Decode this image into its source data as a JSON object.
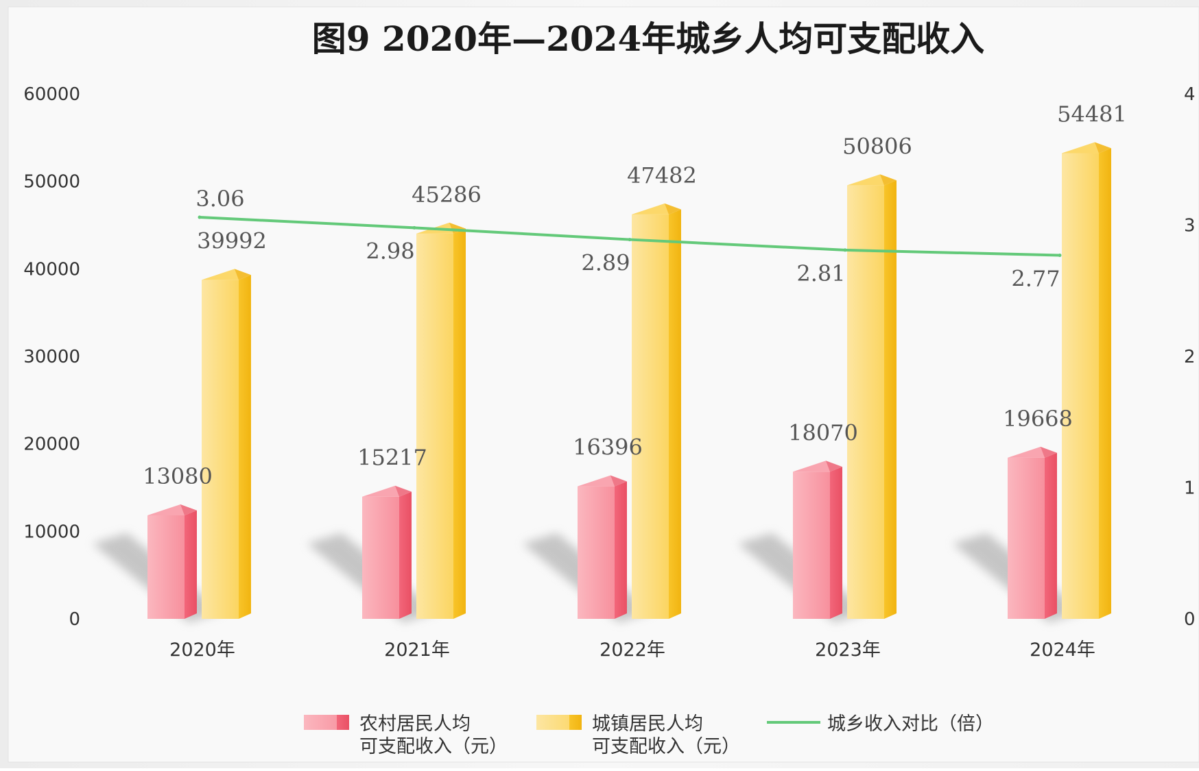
{
  "chart_data": {
    "type": "bar",
    "title": "图9   2020年—2024年城乡人均可支配收入",
    "categories": [
      "2020年",
      "2021年",
      "2022年",
      "2023年",
      "2024年"
    ],
    "series": [
      {
        "name": "农村居民人均可支配收入（元）",
        "legend_lines": [
          "农村居民人均",
          "可支配收入（元）"
        ],
        "type": "bar",
        "axis": "left",
        "color": "#f47d8d",
        "values": [
          13080,
          15217,
          16396,
          18070,
          19668
        ]
      },
      {
        "name": "城镇居民人均可支配收入（元）",
        "legend_lines": [
          "城镇居民人均",
          "可支配收入（元）"
        ],
        "type": "bar",
        "axis": "left",
        "color": "#f8c630",
        "values": [
          39992,
          45286,
          47482,
          50806,
          54481
        ]
      },
      {
        "name": "城乡收入对比（倍）",
        "legend_lines": [
          "城乡收入对比（倍）"
        ],
        "type": "line",
        "axis": "right",
        "color": "#63c979",
        "values": [
          3.06,
          2.98,
          2.89,
          2.81,
          2.77
        ]
      }
    ],
    "y_left": {
      "min": 0,
      "max": 60000,
      "ticks": [
        "0",
        "10000",
        "20000",
        "30000",
        "40000",
        "50000",
        "60000"
      ]
    },
    "y_right": {
      "min": 0,
      "max": 4,
      "ticks": [
        "0",
        "1",
        "2",
        "3",
        "4"
      ]
    },
    "legend_position": "bottom",
    "grid": false
  }
}
